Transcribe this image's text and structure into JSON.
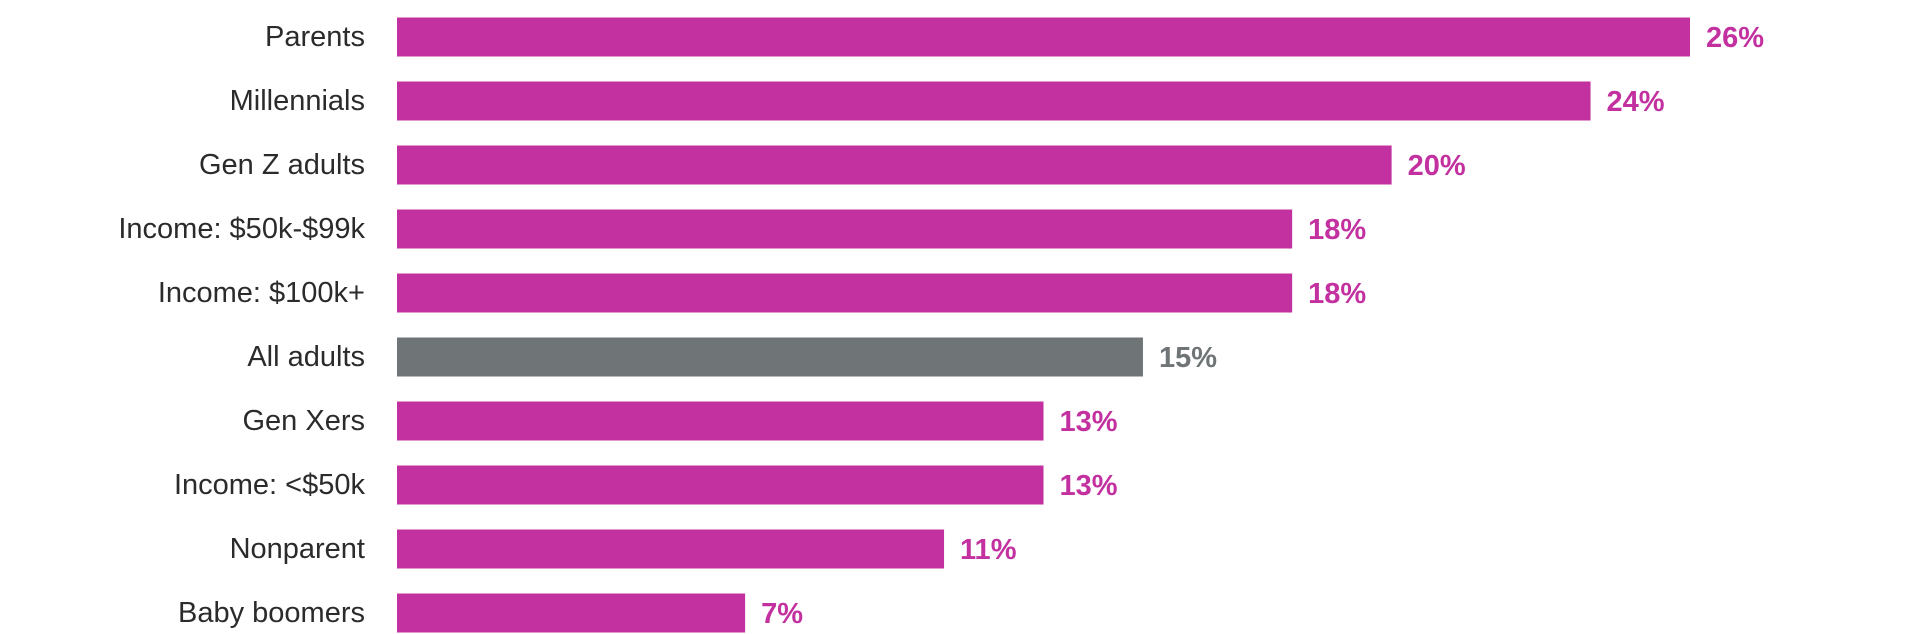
{
  "chart_data": {
    "type": "bar",
    "orientation": "horizontal",
    "title": "",
    "xlabel": "",
    "ylabel": "",
    "xlim": [
      0,
      30
    ],
    "grid": false,
    "legend": "none",
    "categories": [
      "Parents",
      "Millennials",
      "Gen Z adults",
      "Income: $50k-$99k",
      "Income: $100k+",
      "All adults",
      "Gen Xers",
      "Income: <$50k",
      "Nonparent",
      "Baby boomers"
    ],
    "values": [
      26,
      24,
      20,
      18,
      18,
      15,
      13,
      13,
      11,
      7
    ],
    "value_labels": [
      "26%",
      "24%",
      "20%",
      "18%",
      "18%",
      "15%",
      "13%",
      "13%",
      "11%",
      "7%"
    ],
    "highlight_category": "All adults",
    "colors": {
      "bar": "#C3309F",
      "highlight_bar": "#6F7476",
      "category_text": "#2B2B2B"
    }
  }
}
